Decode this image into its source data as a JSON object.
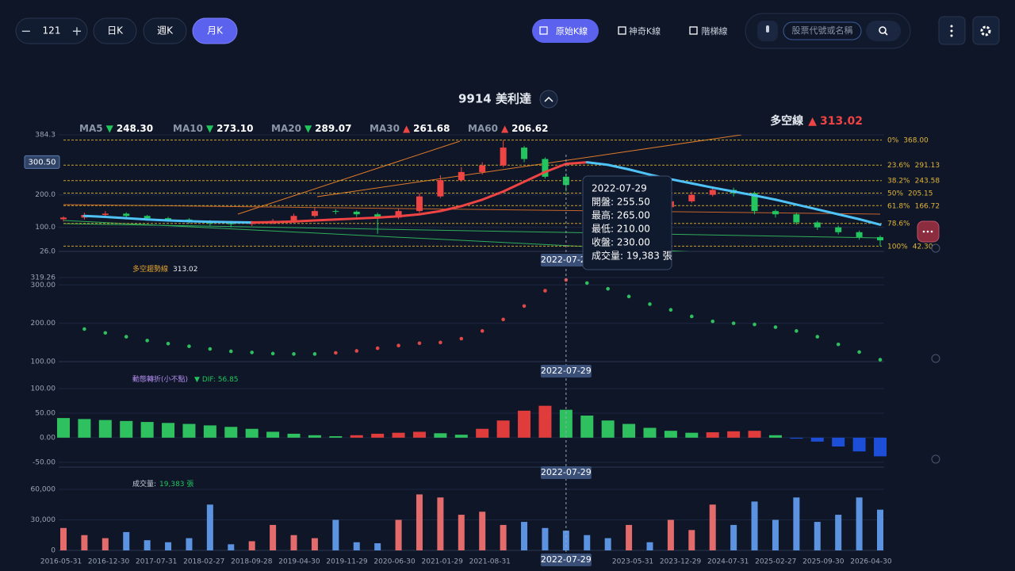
{
  "toolbar": {
    "count": "121",
    "periods": [
      "日K",
      "週K",
      "月K"
    ],
    "active_period": 2,
    "modes": [
      "原始K線",
      "神奇K線",
      "階梯線"
    ],
    "active_mode": 0,
    "search_placeholder": "股票代號或名稱"
  },
  "title": "9914 美利達",
  "ma_legend": [
    {
      "name": "MA5",
      "arrow": "▼",
      "value": "248.30"
    },
    {
      "name": "MA10",
      "arrow": "▼",
      "value": "273.10"
    },
    {
      "name": "MA20",
      "arrow": "▼",
      "value": "289.07"
    },
    {
      "name": "MA30",
      "arrow": "▲",
      "value": "261.68"
    },
    {
      "name": "MA60",
      "arrow": "▲",
      "value": "206.62"
    }
  ],
  "trend_summary": {
    "name": "多空線",
    "arrow": "▲",
    "value": "313.02"
  },
  "tooltip": {
    "date": "2022-07-29",
    "rows": [
      "開盤: 255.50",
      "最高: 265.00",
      "最低: 210.00",
      "收盤: 230.00",
      "成交量: 19,383 張"
    ]
  },
  "crosshair_index": 24,
  "x_labels": [
    "2016-05-31",
    "2016-12-30",
    "2017-07-31",
    "2018-02-27",
    "2018-09-28",
    "2019-04-30",
    "2019-11-29",
    "2020-06-30",
    "2021-01-29",
    "2021-08-31",
    null,
    null,
    "2023-05-31",
    "2023-12-29",
    "2024-07-31",
    "2025-02-27",
    "2025-09-30",
    "2026-04-30"
  ],
  "main": {
    "ylim": [
      26,
      384.3
    ],
    "yticks": [
      384.3,
      {
        "value": 200,
        "label": "200.0"
      },
      {
        "value": 100,
        "label": "100.0"
      },
      {
        "value": 26,
        "label": "26.0"
      }
    ],
    "current": {
      "value": 300.5,
      "label": "300.50"
    },
    "open": [
      125,
      130,
      138,
      142,
      135,
      128,
      124,
      118,
      112,
      110,
      115,
      120,
      135,
      150,
      148,
      140,
      130,
      150,
      195,
      245,
      270,
      290,
      345,
      310,
      255.5,
      230,
      190,
      170,
      178,
      162,
      180,
      200,
      215,
      205,
      150,
      140,
      115,
      100,
      85,
      70
    ],
    "close": [
      130,
      138,
      142,
      135,
      128,
      124,
      118,
      112,
      110,
      115,
      120,
      135,
      150,
      148,
      140,
      130,
      150,
      195,
      245,
      270,
      290,
      345,
      310,
      255.5,
      230,
      190,
      170,
      178,
      162,
      180,
      200,
      215,
      205,
      150,
      140,
      115,
      100,
      85,
      70,
      60
    ],
    "high": [
      134,
      145,
      150,
      146,
      138,
      132,
      128,
      122,
      116,
      120,
      126,
      142,
      160,
      156,
      152,
      145,
      158,
      205,
      260,
      285,
      300,
      368,
      350,
      315,
      265,
      235,
      198,
      185,
      182,
      188,
      210,
      225,
      222,
      210,
      155,
      145,
      120,
      105,
      90,
      75
    ],
    "low": [
      118,
      124,
      132,
      128,
      122,
      118,
      112,
      105,
      100,
      104,
      110,
      114,
      130,
      140,
      132,
      80,
      125,
      145,
      190,
      240,
      262,
      285,
      300,
      250,
      210,
      180,
      160,
      162,
      155,
      158,
      175,
      195,
      195,
      140,
      130,
      108,
      92,
      78,
      62,
      42.3
    ],
    "ma_line": [
      null,
      135,
      132,
      128,
      124,
      121,
      119,
      117,
      116,
      115,
      116,
      118,
      121,
      124,
      127,
      130,
      134,
      140,
      150,
      165,
      185,
      210,
      240,
      270,
      295,
      300,
      292,
      278,
      262,
      248,
      235,
      222,
      210,
      198,
      185,
      170,
      155,
      140,
      125,
      108
    ],
    "fib": [
      {
        "name": "0%",
        "value": 368,
        "label": "368.00"
      },
      {
        "name": "23.6%",
        "value": 291.13,
        "label": "291.13"
      },
      {
        "name": "38.2%",
        "value": 243.58,
        "label": "243.58"
      },
      {
        "name": "50%",
        "value": 205.15,
        "label": "205.15"
      },
      {
        "name": "61.8%",
        "value": 166.72,
        "label": "166.72"
      },
      {
        "name": "78.6%",
        "value": 112
      },
      {
        "name": "100%",
        "value": 42.3,
        "label": "42.30"
      }
    ]
  },
  "trend": {
    "name": "多空趨勢線",
    "value": "313.02",
    "ylim": [
      100,
      319.26
    ],
    "yticks": [
      {
        "value": 319.26,
        "label": "319.26"
      },
      {
        "value": 300,
        "label": "300.00"
      },
      {
        "value": 200,
        "label": "200.00"
      },
      {
        "value": 100,
        "label": "100.00"
      }
    ],
    "values": [
      null,
      185,
      175,
      165,
      155,
      147,
      140,
      133,
      127,
      124,
      121,
      120,
      120,
      123,
      128,
      135,
      142,
      148,
      150,
      160,
      180,
      210,
      245,
      285,
      313.02,
      305,
      290,
      270,
      250,
      235,
      218,
      205,
      200,
      197,
      190,
      180,
      165,
      145,
      125,
      105
    ]
  },
  "dif": {
    "name": "動態轉折(小不點)",
    "label": "▼ DIF: 56.85",
    "ylim": [
      -60,
      100
    ],
    "yticks": [
      {
        "value": 100,
        "label": "100.00"
      },
      {
        "value": 50,
        "label": "50.00"
      },
      {
        "value": 0,
        "label": "0.00"
      },
      {
        "value": -50,
        "label": "-50.00"
      }
    ],
    "values": [
      40,
      38,
      36,
      34,
      32,
      30,
      28,
      25,
      22,
      18,
      12,
      8,
      5,
      3,
      5,
      8,
      10,
      12,
      9,
      6,
      18,
      35,
      55,
      65,
      56.85,
      45,
      35,
      28,
      20,
      14,
      10,
      11,
      13,
      14,
      5,
      -2,
      -8,
      -18,
      -28,
      -38
    ]
  },
  "volume": {
    "name": "成交量:",
    "label": "19,383 張",
    "ylim": [
      0,
      60000
    ],
    "yticks": [
      {
        "value": 60000,
        "label": "60,000"
      },
      {
        "value": 30000,
        "label": "30,000"
      },
      0
    ],
    "values": [
      22000,
      15000,
      12000,
      18000,
      10000,
      8000,
      12000,
      45000,
      6000,
      9000,
      25000,
      15000,
      12000,
      30000,
      8000,
      7000,
      30000,
      55000,
      52000,
      35000,
      38000,
      25000,
      28000,
      22000,
      19383,
      15000,
      12000,
      25000,
      8000,
      30000,
      20000,
      45000,
      25000,
      48000,
      30000,
      52000,
      28000,
      35000,
      52000,
      40000
    ]
  }
}
